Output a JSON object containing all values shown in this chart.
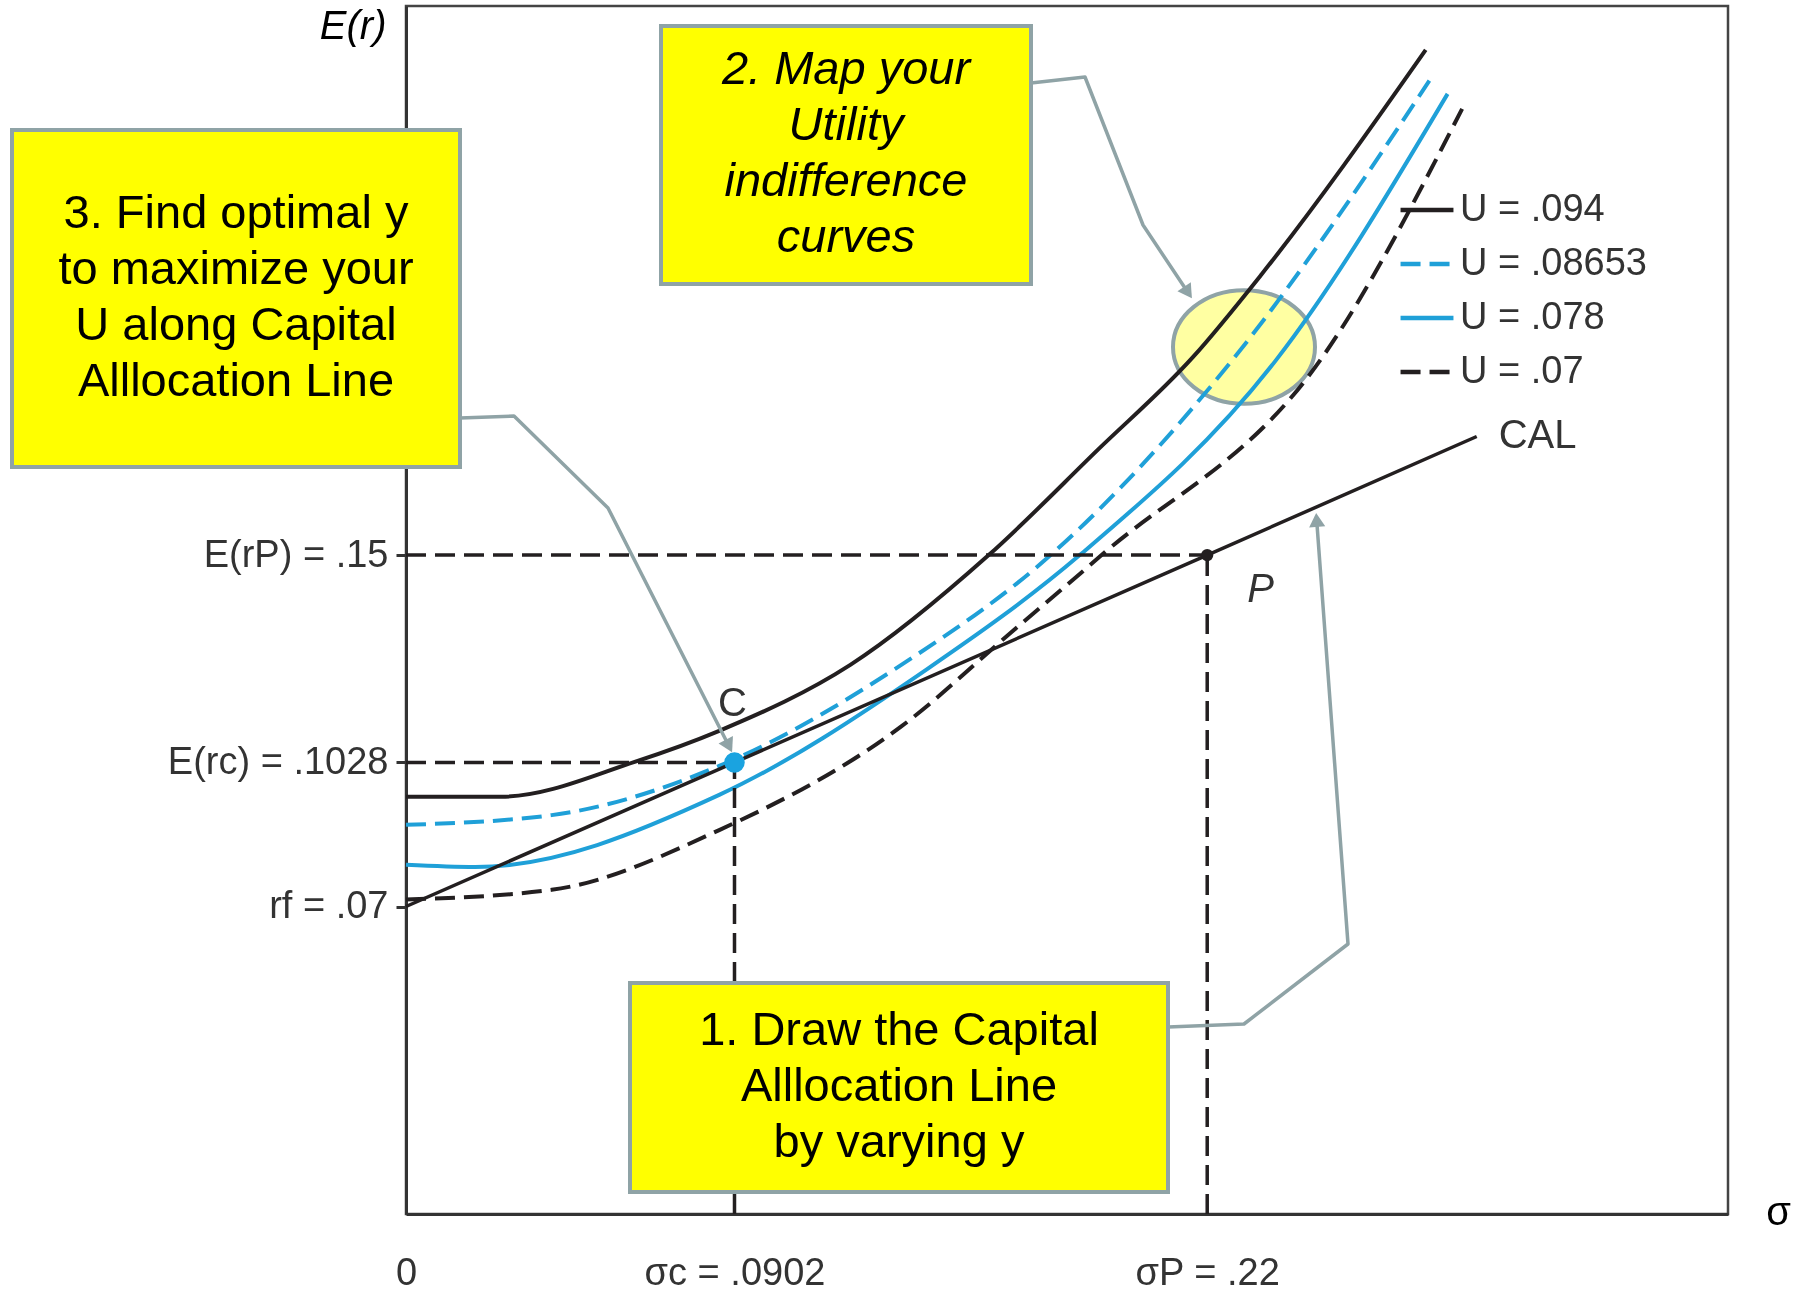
{
  "chart_data": {
    "type": "line",
    "xlabel": "σ",
    "ylabel": "E(r)",
    "xlim": [
      0,
      0.363
    ],
    "ylim": [
      0,
      0.275
    ],
    "xticks": [
      {
        "value": 0,
        "label": "0"
      },
      {
        "value": 0.0902,
        "label": "σc = .0902"
      },
      {
        "value": 0.22,
        "label": "σP = .22"
      }
    ],
    "yticks": [
      {
        "value": 0.07,
        "label": "rf = .07"
      },
      {
        "value": 0.1028,
        "label": "E(rc) = .1028"
      },
      {
        "value": 0.15,
        "label": "E(rP) = .15"
      }
    ],
    "grid": false,
    "legend": "top right",
    "series": [
      {
        "name": "U = .094",
        "color": "#231f20",
        "line_style": "solid",
        "x": [
          0,
          0.026,
          0.063,
          0.086,
          0.122,
          0.16,
          0.19,
          0.216,
          0.235,
          0.28
        ],
        "values": [
          0.095,
          0.095,
          0.103,
          0.11,
          0.125,
          0.15,
          0.174,
          0.195,
          0.214,
          0.265
        ]
      },
      {
        "name": "U = .08653",
        "color": "#1fa0d8",
        "line_style": "dashed",
        "x": [
          0,
          0.04,
          0.086,
          0.136,
          0.177,
          0.227,
          0.281
        ],
        "values": [
          0.0886,
          0.0908,
          0.102,
          0.125,
          0.15,
          0.1945,
          0.258
        ]
      },
      {
        "name": "U = .078",
        "color": "#1fa0d8",
        "line_style": "solid",
        "x": [
          0,
          0.019,
          0.086,
          0.143,
          0.185,
          0.239,
          0.286
        ],
        "values": [
          0.0795,
          0.079,
          0.0954,
          0.124,
          0.15,
          0.1945,
          0.255
        ]
      },
      {
        "name": "U = .07",
        "color": "#231f20",
        "line_style": "dashed",
        "x": [
          0,
          0.04,
          0.086,
          0.136,
          0.167,
          0.191,
          0.252,
          0.29
        ],
        "values": [
          0.0716,
          0.0738,
          0.0874,
          0.111,
          0.133,
          0.15,
          0.1955,
          0.2516
        ]
      },
      {
        "color": "#231f20",
        "line_style": "solid",
        "x": [
          0,
          0.22,
          0.294
        ],
        "values": [
          0.07,
          0.15,
          0.177
        ]
      },
      {
        "color": "#231f20",
        "line_style": "dashed",
        "x": [
          0,
          0.0902
        ],
        "values": [
          0.1028,
          0.1028
        ]
      },
      {
        "color": "#231f20",
        "line_style": "dashed",
        "x": [
          0.0902,
          0.0902
        ],
        "values": [
          0,
          0.1028
        ]
      },
      {
        "color": "#231f20",
        "line_style": "dashed",
        "x": [
          0,
          0.22
        ],
        "values": [
          0.15,
          0.15
        ]
      },
      {
        "color": "#231f20",
        "line_style": "dashed",
        "x": [
          0.22,
          0.22
        ],
        "values": [
          0,
          0.15
        ]
      },
      {
        "type": "scatter",
        "marker": "circle",
        "color": "#1aa3e0",
        "x": [
          0.0902
        ],
        "values": [
          0.1028
        ]
      },
      {
        "type": "scatter",
        "marker": "circle",
        "color": "#231f20",
        "x": [
          0.22
        ],
        "values": [
          0.15
        ]
      }
    ],
    "annotations": [
      "3. Find optimal y\nto maximize your\nU along Capital\nAlllocation Line",
      "2. Map your\nUtility\nindifference\ncurves",
      "1. Draw the Capital\nAlllocation Line\nby varying y",
      {
        "text": "C",
        "x": 0.0902,
        "y": 0.1028
      },
      {
        "text": "P",
        "x": 0.22,
        "y": 0.15
      },
      {
        "text": "CAL",
        "x": 0.294,
        "y": 0.177
      }
    ]
  }
}
